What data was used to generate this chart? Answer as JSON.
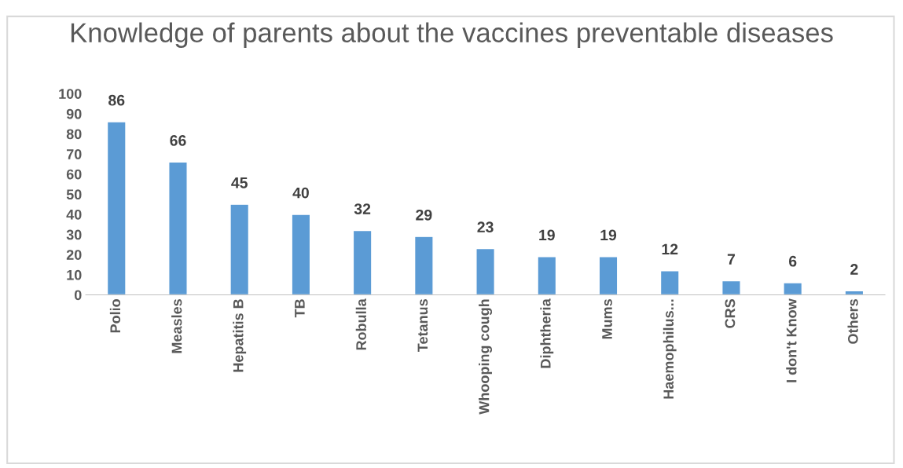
{
  "chart_data": {
    "type": "bar",
    "title": "Knowledge of parents about the vaccines preventable diseases",
    "categories": [
      "Polio",
      "Measles",
      "Hepatitis B",
      "TB",
      "Robulla",
      "Tetanus",
      "Whooping cough",
      "Diphtheria",
      "Mums",
      "Haemophilus...",
      "CRS",
      "I don't Know",
      "Others"
    ],
    "values": [
      86,
      66,
      45,
      40,
      32,
      29,
      23,
      19,
      19,
      12,
      7,
      6,
      2
    ],
    "color": "#5b9bd5",
    "ylim": [
      0,
      100
    ],
    "yticks": [
      0,
      10,
      20,
      30,
      40,
      50,
      60,
      70,
      80,
      90,
      100
    ],
    "grid": false,
    "data_labels": true
  }
}
